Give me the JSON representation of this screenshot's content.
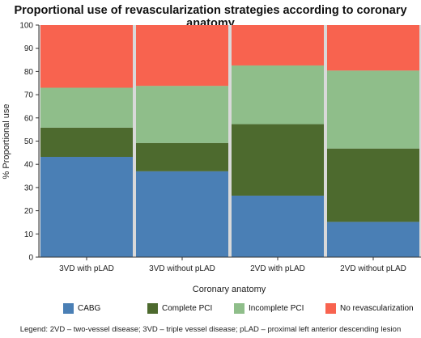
{
  "chart_data": {
    "type": "bar",
    "stacked": true,
    "title": "Proportional use of revascularization strategies according to coronary anatomy",
    "xlabel": "Coronary anatomy",
    "ylabel": "% Proportional use",
    "ylim": [
      0,
      100
    ],
    "yticks": [
      0,
      10,
      20,
      30,
      40,
      50,
      60,
      70,
      80,
      90,
      100
    ],
    "grid": false,
    "legend_position": "bottom",
    "categories": [
      "3VD with pLAD",
      "3VD without pLAD",
      "2VD with pLAD",
      "2VD without pLAD"
    ],
    "series": [
      {
        "name": "CABG",
        "color": "#4a7fb5",
        "values": [
          43.2,
          37,
          26.5,
          15.2
        ]
      },
      {
        "name": "Complete PCI",
        "color": "#4d6a2e",
        "values": [
          12.6,
          12.2,
          30.8,
          31.6
        ]
      },
      {
        "name": "Incomplete PCI",
        "color": "#8fbe8a",
        "values": [
          17.2,
          24.6,
          25.3,
          33.6
        ]
      },
      {
        "name": "No revascularization",
        "color": "#f8634f",
        "values": [
          27,
          26.2,
          17.4,
          19.6
        ]
      }
    ]
  },
  "footnote": "Legend: 2VD – two-vessel disease; 3VD – triple vessel disease; pLAD – proximal left anterior descending lesion"
}
